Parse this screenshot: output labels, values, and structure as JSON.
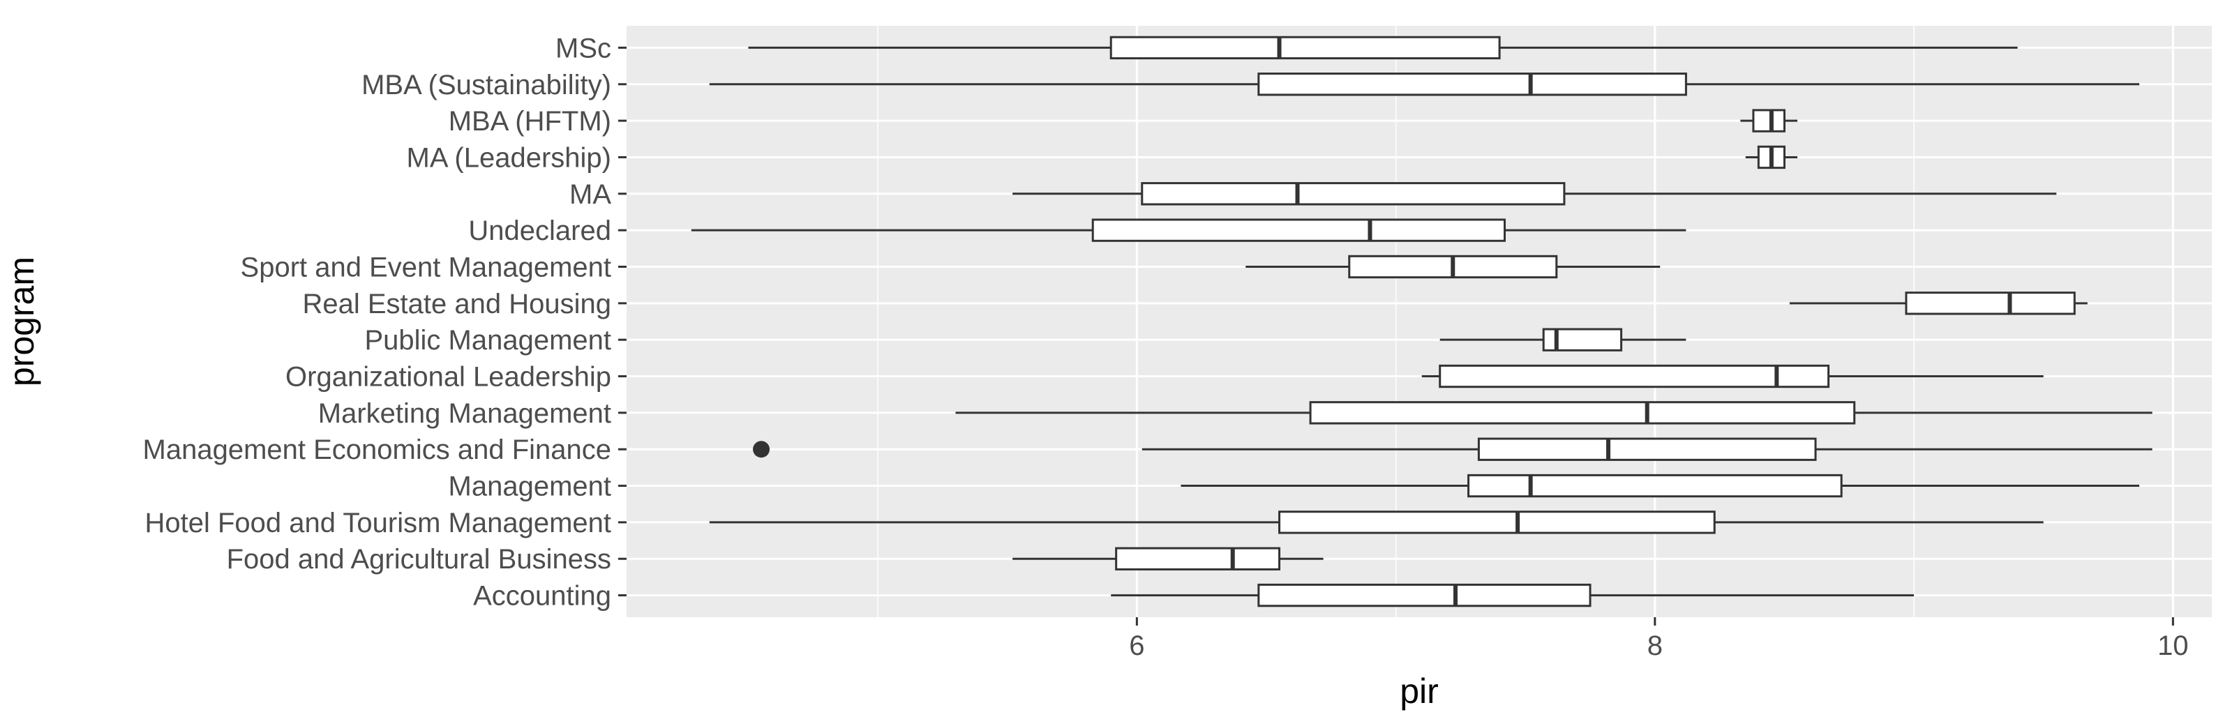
{
  "chart_data": {
    "type": "boxplot",
    "orientation": "horizontal",
    "xlabel": "pir",
    "ylabel": "program",
    "xlim": [
      4.03,
      10.15
    ],
    "xticks": [
      6,
      8,
      10
    ],
    "grid": true,
    "background": "#ebebeb",
    "grid_color": "#ffffff",
    "box_stroke": "#333333",
    "box_fill": "#ffffff",
    "categories": [
      "Accounting",
      "Food and Agricultural Business",
      "Hotel Food and Tourism Management",
      "Management",
      "Management Economics and Finance",
      "Marketing Management",
      "Organizational Leadership",
      "Public Management",
      "Real Estate and Housing",
      "Sport and Event Management",
      "Undeclared",
      "MA",
      "MA (Leadership)",
      "MBA (HFTM)",
      "MBA (Sustainability)",
      "MSc"
    ],
    "boxes": [
      {
        "min": 5.9,
        "q1": 6.47,
        "median": 7.23,
        "q3": 7.75,
        "max": 9.0,
        "outliers": []
      },
      {
        "min": 5.52,
        "q1": 5.92,
        "median": 6.37,
        "q3": 6.55,
        "max": 6.72,
        "outliers": []
      },
      {
        "min": 4.35,
        "q1": 6.55,
        "median": 7.47,
        "q3": 8.23,
        "max": 9.5,
        "outliers": []
      },
      {
        "min": 6.17,
        "q1": 7.28,
        "median": 7.52,
        "q3": 8.72,
        "max": 9.87,
        "outliers": []
      },
      {
        "min": 6.02,
        "q1": 7.32,
        "median": 7.82,
        "q3": 8.62,
        "max": 9.92,
        "outliers": [
          4.55
        ]
      },
      {
        "min": 5.3,
        "q1": 6.67,
        "median": 7.97,
        "q3": 8.77,
        "max": 9.92,
        "outliers": []
      },
      {
        "min": 7.1,
        "q1": 7.17,
        "median": 8.47,
        "q3": 8.67,
        "max": 9.5,
        "outliers": []
      },
      {
        "min": 7.17,
        "q1": 7.57,
        "median": 7.62,
        "q3": 7.87,
        "max": 8.12,
        "outliers": []
      },
      {
        "min": 8.52,
        "q1": 8.97,
        "median": 9.37,
        "q3": 9.62,
        "max": 9.67,
        "outliers": []
      },
      {
        "min": 6.42,
        "q1": 6.82,
        "median": 7.22,
        "q3": 7.62,
        "max": 8.02,
        "outliers": []
      },
      {
        "min": 4.28,
        "q1": 5.83,
        "median": 6.9,
        "q3": 7.42,
        "max": 8.12,
        "outliers": []
      },
      {
        "min": 5.52,
        "q1": 6.02,
        "median": 6.62,
        "q3": 7.65,
        "max": 9.55,
        "outliers": []
      },
      {
        "min": 8.35,
        "q1": 8.4,
        "median": 8.45,
        "q3": 8.5,
        "max": 8.55,
        "outliers": []
      },
      {
        "min": 8.33,
        "q1": 8.38,
        "median": 8.45,
        "q3": 8.5,
        "max": 8.55,
        "outliers": []
      },
      {
        "min": 4.35,
        "q1": 6.47,
        "median": 7.52,
        "q3": 8.12,
        "max": 9.87,
        "outliers": []
      },
      {
        "min": 4.5,
        "q1": 5.9,
        "median": 6.55,
        "q3": 7.4,
        "max": 9.4,
        "outliers": []
      }
    ]
  }
}
